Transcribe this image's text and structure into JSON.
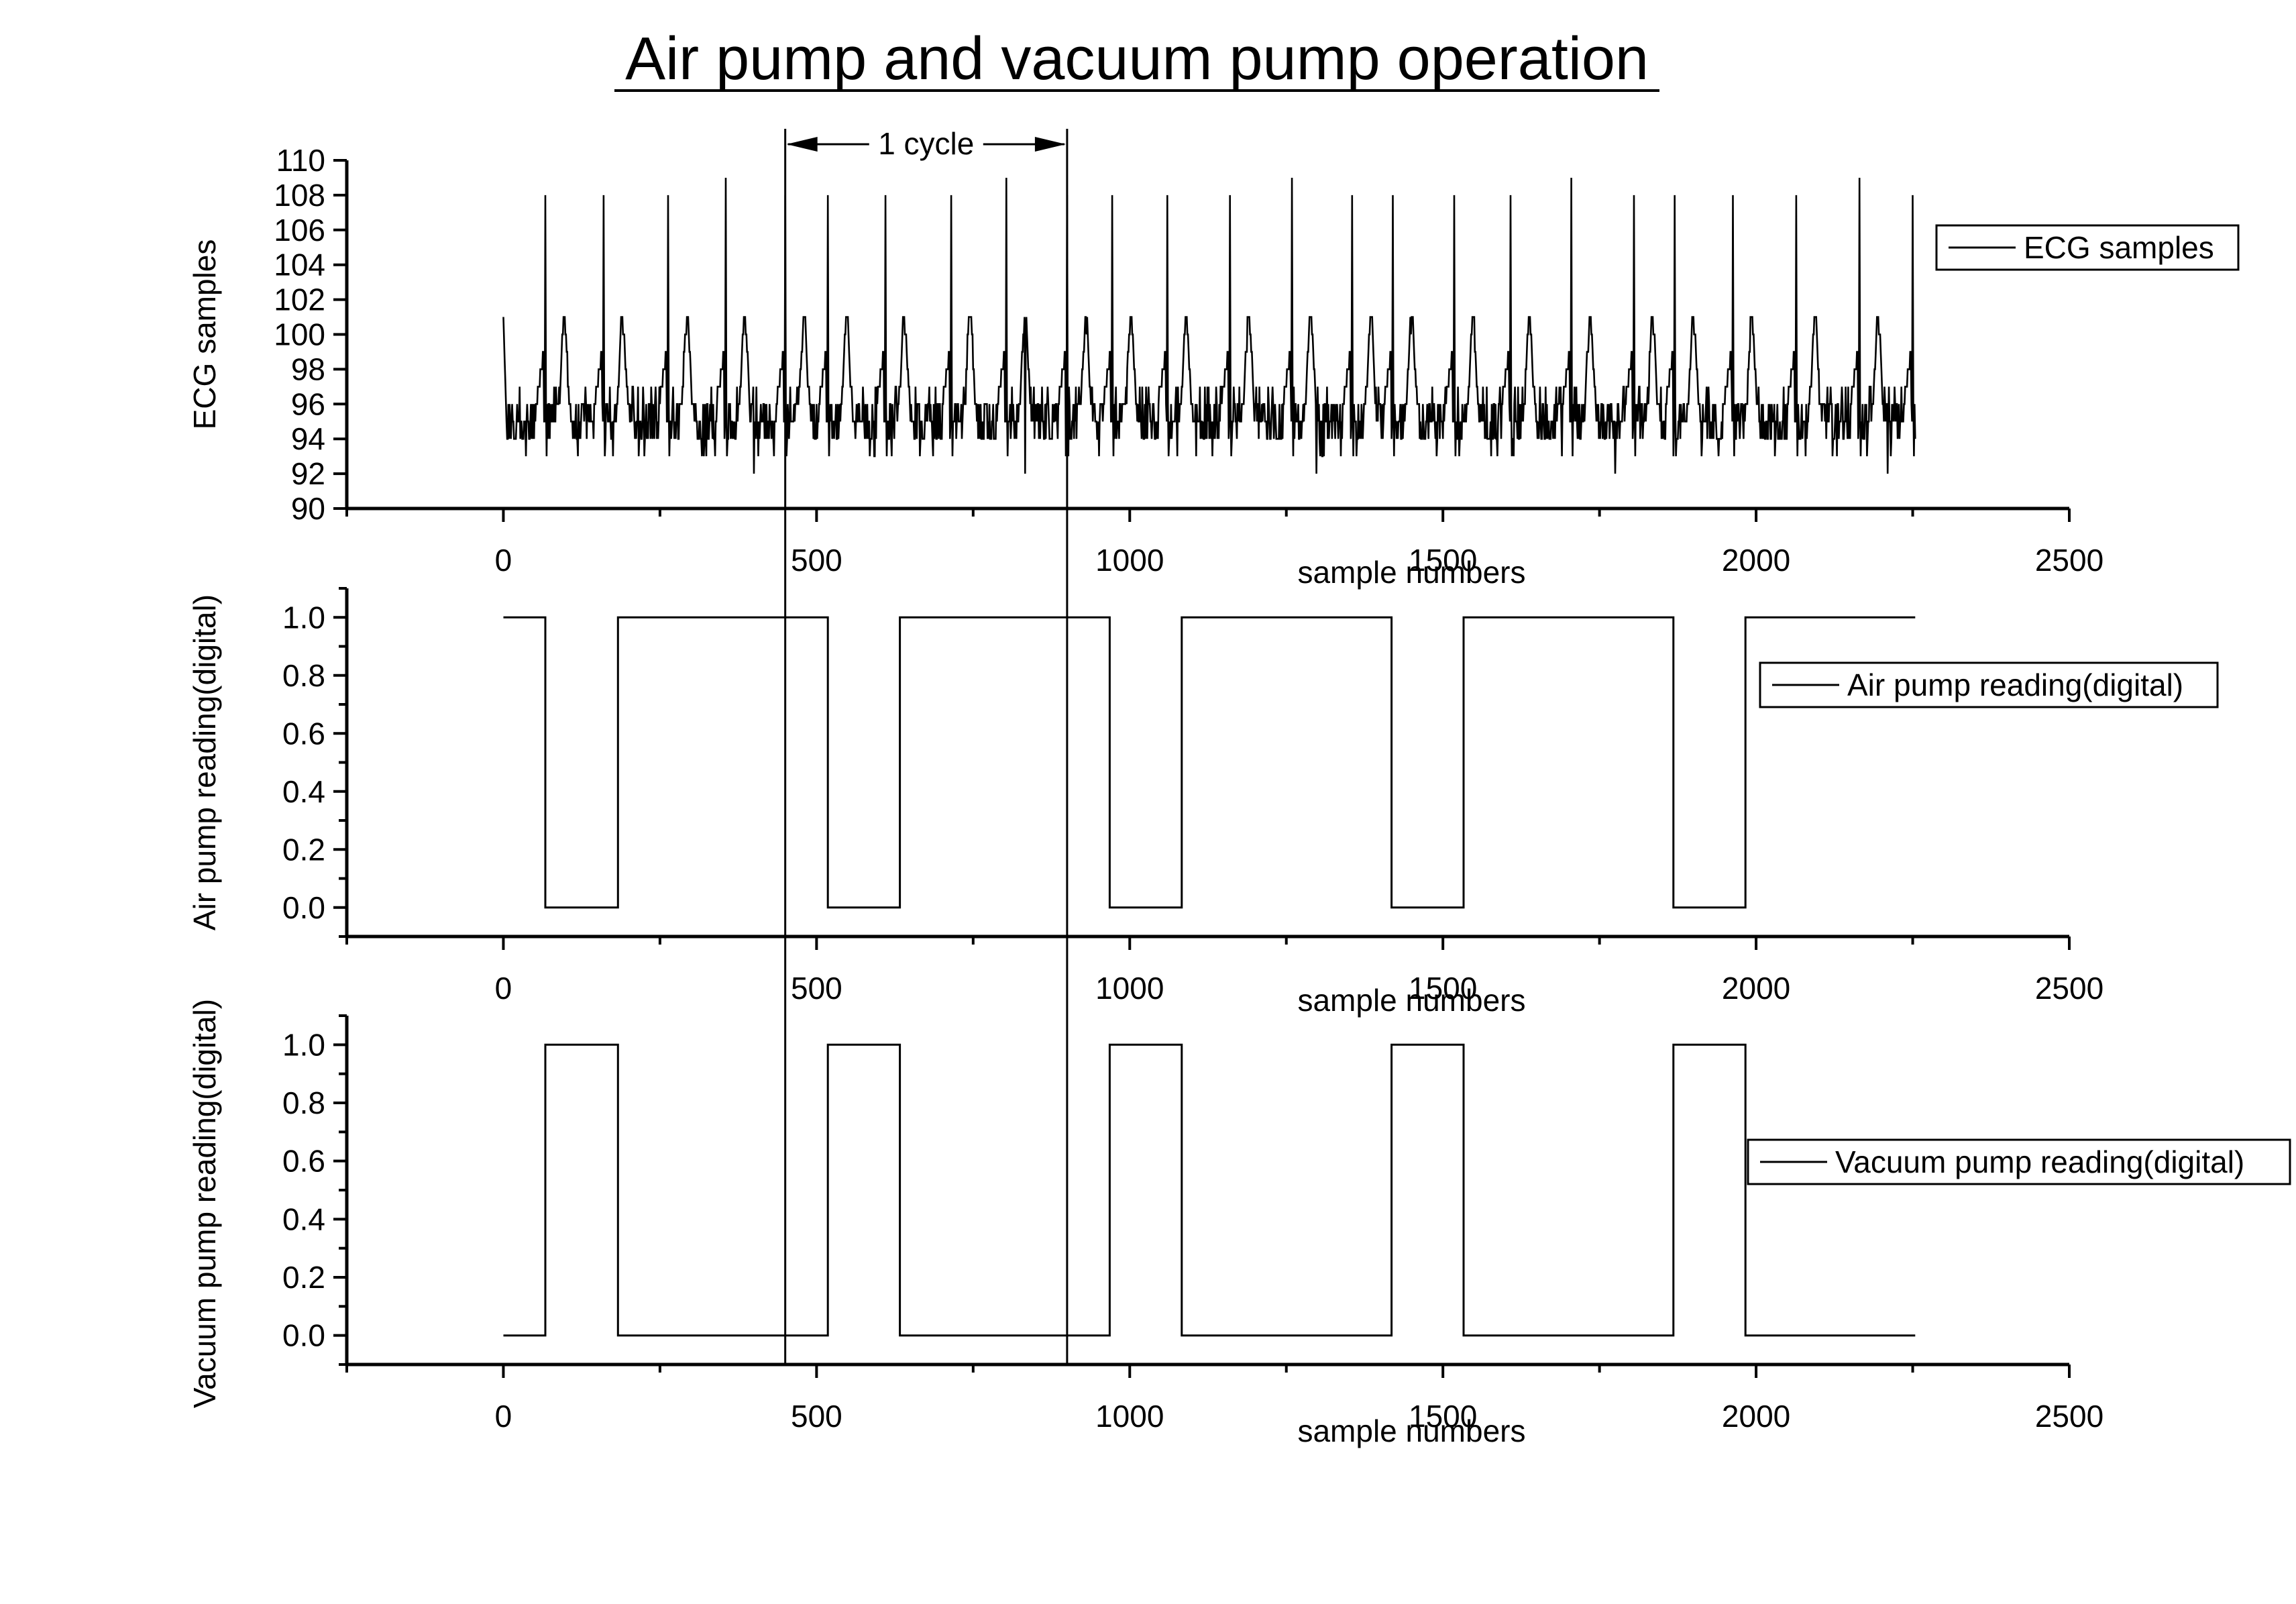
{
  "title": "Air pump and vacuum pump operation",
  "annotation": {
    "label": "1 cycle",
    "x_start": 450,
    "x_end": 900
  },
  "chart_data": [
    {
      "type": "line",
      "id": "ecg",
      "xlabel": "sample numbers",
      "ylabel": "ECG samples",
      "xlim": [
        -250,
        2500
      ],
      "ylim": [
        90,
        110
      ],
      "x_ticks": [
        0,
        500,
        1000,
        1500,
        2000,
        2500
      ],
      "y_ticks": [
        90,
        92,
        94,
        96,
        98,
        100,
        102,
        104,
        106,
        108,
        110
      ],
      "legend": {
        "position": "top-right",
        "entries": [
          "ECG samples"
        ]
      },
      "series": [
        {
          "name": "ECG samples",
          "x_range": [
            0,
            2254
          ],
          "baseline": 95,
          "noise_range": [
            93,
            97
          ],
          "start_value": 101,
          "r_peaks": [
            [
              67,
              108
            ],
            [
              160,
              108
            ],
            [
              263,
              108
            ],
            [
              355,
              109
            ],
            [
              450,
              108
            ],
            [
              518,
              108
            ],
            [
              610,
              108
            ],
            [
              715,
              108
            ],
            [
              803,
              109
            ],
            [
              900,
              108
            ],
            [
              972,
              108
            ],
            [
              1060,
              108
            ],
            [
              1160,
              108
            ],
            [
              1259,
              109
            ],
            [
              1355,
              108
            ],
            [
              1420,
              108
            ],
            [
              1518,
              108
            ],
            [
              1608,
              108
            ],
            [
              1705,
              109
            ],
            [
              1805,
              108
            ],
            [
              1870,
              108
            ],
            [
              1963,
              108
            ],
            [
              2064,
              108
            ],
            [
              2165,
              109
            ],
            [
              2250,
              108
            ]
          ],
          "t_wave_peak": 101,
          "minima": [
            [
              400,
              92
            ],
            [
              833,
              92
            ],
            [
              1298,
              92
            ],
            [
              1775,
              92
            ],
            [
              2210,
              92
            ]
          ]
        }
      ]
    },
    {
      "type": "line",
      "id": "air",
      "xlabel": "sample numbers",
      "ylabel": "Air pump reading(digital)",
      "xlim": [
        -250,
        2500
      ],
      "ylim": [
        -0.1,
        1.1
      ],
      "x_ticks": [
        0,
        500,
        1000,
        1500,
        2000,
        2500
      ],
      "y_ticks": [
        0.0,
        0.2,
        0.4,
        0.6,
        0.8,
        1.0
      ],
      "legend": {
        "position": "right",
        "entries": [
          "Air pump reading(digital)"
        ]
      },
      "series": [
        {
          "name": "Air pump reading(digital)",
          "x": [
            0,
            67,
            67,
            183,
            183,
            518,
            518,
            633,
            633,
            968,
            968,
            1083,
            1083,
            1418,
            1418,
            1533,
            1533,
            1868,
            1868,
            1983,
            1983,
            2254
          ],
          "y": [
            1,
            1,
            0,
            0,
            1,
            1,
            0,
            0,
            1,
            1,
            0,
            0,
            1,
            1,
            0,
            0,
            1,
            1,
            0,
            0,
            1,
            1
          ]
        }
      ]
    },
    {
      "type": "line",
      "id": "vacuum",
      "xlabel": "sample numbers",
      "ylabel": "Vacuum pump reading(digital)",
      "xlim": [
        -250,
        2500
      ],
      "ylim": [
        -0.1,
        1.1
      ],
      "x_ticks": [
        0,
        500,
        1000,
        1500,
        2000,
        2500
      ],
      "y_ticks": [
        0.0,
        0.2,
        0.4,
        0.6,
        0.8,
        1.0
      ],
      "legend": {
        "position": "right",
        "entries": [
          "Vacuum pump reading(digital)"
        ]
      },
      "series": [
        {
          "name": "Vacuum pump reading(digital)",
          "x": [
            0,
            67,
            67,
            183,
            183,
            518,
            518,
            633,
            633,
            968,
            968,
            1083,
            1083,
            1418,
            1418,
            1533,
            1533,
            1868,
            1868,
            1983,
            1983,
            2254
          ],
          "y": [
            0,
            0,
            1,
            1,
            0,
            0,
            1,
            1,
            0,
            0,
            1,
            1,
            0,
            0,
            1,
            1,
            0,
            0,
            1,
            1,
            0,
            0
          ]
        }
      ]
    }
  ]
}
